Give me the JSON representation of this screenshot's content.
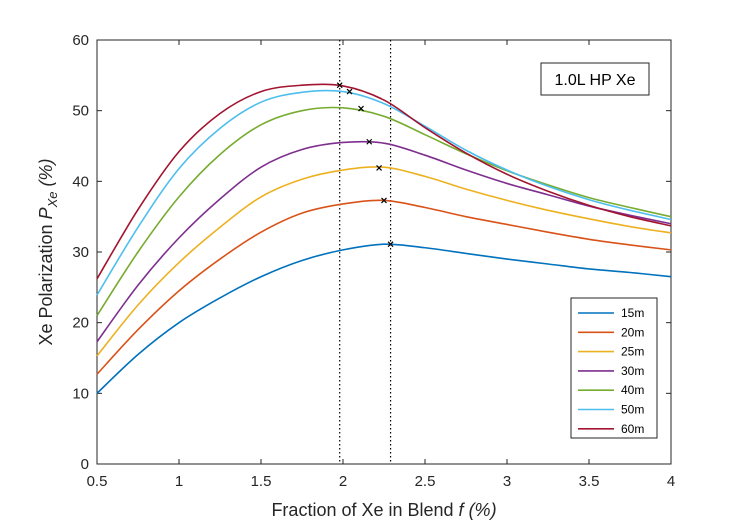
{
  "chart_data": {
    "type": "line",
    "title": "",
    "annotation": "1.0L HP Xe",
    "xlabel": {
      "main": "Fraction of Xe in Blend ",
      "var": "f",
      "unit": " (%)"
    },
    "ylabel": {
      "main": "Xe Polarization ",
      "var": "P",
      "sub": "Xe",
      "unit": " (%)"
    },
    "xlim": [
      0.5,
      4
    ],
    "ylim": [
      0,
      60
    ],
    "xticks": [
      0.5,
      1,
      1.5,
      2,
      2.5,
      3,
      3.5,
      4
    ],
    "xtick_labels": [
      "0.5",
      "1",
      "1.5",
      "2",
      "2.5",
      "3",
      "3.5",
      "4"
    ],
    "yticks": [
      0,
      10,
      20,
      30,
      40,
      50,
      60
    ],
    "ytick_labels": [
      "0",
      "10",
      "20",
      "30",
      "40",
      "50",
      "60"
    ],
    "legend_location": "bottom-right",
    "vlines": [
      1.98,
      2.29
    ],
    "x": [
      0.5,
      0.75,
      1.0,
      1.25,
      1.5,
      1.75,
      2.0,
      2.25,
      2.5,
      2.75,
      3.0,
      3.25,
      3.5,
      3.75,
      4.0
    ],
    "series": [
      {
        "name": "15m",
        "color": "#0072BD",
        "values": [
          10.0,
          15.5,
          20.0,
          23.5,
          26.5,
          28.8,
          30.3,
          31.1,
          30.6,
          29.8,
          29.0,
          28.3,
          27.6,
          27.1,
          26.5
        ],
        "peak": [
          2.29,
          31.1
        ]
      },
      {
        "name": "20m",
        "color": "#D95319",
        "values": [
          12.7,
          19.0,
          24.5,
          29.0,
          32.8,
          35.5,
          36.8,
          37.3,
          36.3,
          35.0,
          33.9,
          32.8,
          31.8,
          31.0,
          30.3
        ],
        "peak": [
          2.25,
          37.3
        ]
      },
      {
        "name": "25m",
        "color": "#EDB120",
        "values": [
          15.3,
          22.5,
          28.5,
          33.5,
          37.8,
          40.3,
          41.6,
          42.0,
          40.7,
          38.9,
          37.3,
          35.9,
          34.7,
          33.6,
          32.7
        ],
        "peak": [
          2.22,
          41.9
        ]
      },
      {
        "name": "30m",
        "color": "#7E2F8E",
        "values": [
          17.3,
          25.3,
          32.0,
          37.5,
          42.0,
          44.5,
          45.5,
          45.4,
          43.7,
          41.6,
          39.7,
          38.1,
          36.5,
          35.2,
          34.0
        ],
        "peak": [
          2.16,
          45.6
        ]
      },
      {
        "name": "40m",
        "color": "#77AC30",
        "values": [
          21.0,
          30.0,
          37.8,
          43.8,
          48.0,
          50.0,
          50.4,
          49.2,
          46.6,
          43.9,
          41.5,
          39.5,
          37.7,
          36.3,
          35.0
        ],
        "peak": [
          2.11,
          50.3
        ]
      },
      {
        "name": "50m",
        "color": "#4DBEEE",
        "values": [
          23.9,
          33.5,
          41.8,
          47.5,
          51.2,
          52.6,
          52.7,
          51.0,
          47.8,
          44.4,
          41.6,
          39.3,
          37.4,
          35.9,
          34.6
        ],
        "peak": [
          2.04,
          52.7
        ]
      },
      {
        "name": "60m",
        "color": "#A2142F",
        "values": [
          26.2,
          36.0,
          44.2,
          49.6,
          52.7,
          53.6,
          53.5,
          51.5,
          47.6,
          44.0,
          41.0,
          38.6,
          36.6,
          35.0,
          33.7
        ],
        "peak": [
          1.98,
          53.6
        ]
      }
    ]
  }
}
